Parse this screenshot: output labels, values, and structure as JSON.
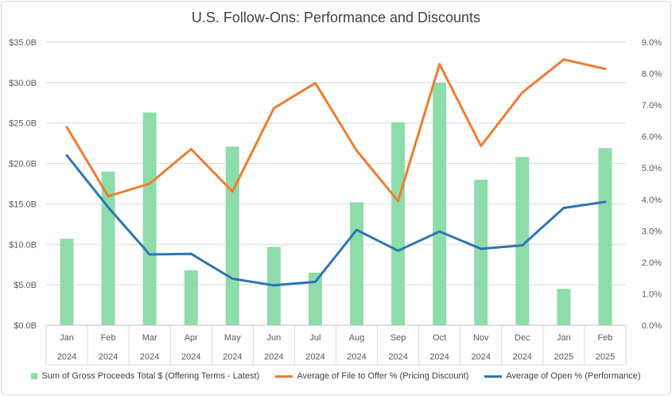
{
  "chart_data": {
    "type": "bar",
    "title": "U.S. Follow-Ons: Performance and Discounts",
    "categories": [
      "Jan",
      "Feb",
      "Mar",
      "Apr",
      "May",
      "Jun",
      "Jul",
      "Aug",
      "Sep",
      "Oct",
      "Nov",
      "Dec",
      "Jan",
      "Feb"
    ],
    "years": [
      "2024",
      "2024",
      "2024",
      "2024",
      "2024",
      "2024",
      "2024",
      "2024",
      "2024",
      "2024",
      "2024",
      "2024",
      "2025",
      "2025"
    ],
    "left_axis": {
      "ylim": [
        0,
        35
      ],
      "ticks": [
        "$0.0B",
        "$5.0B",
        "$10.0B",
        "$15.0B",
        "$20.0B",
        "$25.0B",
        "$30.0B",
        "$35.0B"
      ]
    },
    "right_axis": {
      "ylim": [
        0,
        9
      ],
      "ticks": [
        "0.0%",
        "1.0%",
        "2.0%",
        "3.0%",
        "4.0%",
        "5.0%",
        "6.0%",
        "7.0%",
        "8.0%",
        "9.0%"
      ]
    },
    "grid": true,
    "legend_position": "bottom",
    "series": [
      {
        "name": "Sum of Gross Proceeds Total $ (Offering Terms - Latest)",
        "kind": "bar",
        "axis": "left",
        "color": "#8fdcab",
        "values": [
          10.7,
          19.0,
          26.3,
          6.8,
          22.1,
          9.7,
          6.5,
          15.2,
          25.1,
          30.0,
          18.0,
          20.8,
          4.5,
          21.9
        ]
      },
      {
        "name": "Average of File to Offer % (Pricing Discount)",
        "kind": "line",
        "axis": "right",
        "color": "#ed7d31",
        "values": [
          6.3,
          4.1,
          4.5,
          5.6,
          4.25,
          6.9,
          7.7,
          5.55,
          3.95,
          8.3,
          5.7,
          7.4,
          8.45,
          8.15
        ]
      },
      {
        "name": "Average of Open % (Performance)",
        "kind": "line",
        "axis": "right",
        "color": "#2e75b6",
        "values": [
          5.4,
          3.75,
          2.25,
          2.27,
          1.48,
          1.27,
          1.38,
          3.03,
          2.37,
          2.98,
          2.43,
          2.54,
          3.73,
          3.92
        ]
      }
    ]
  }
}
